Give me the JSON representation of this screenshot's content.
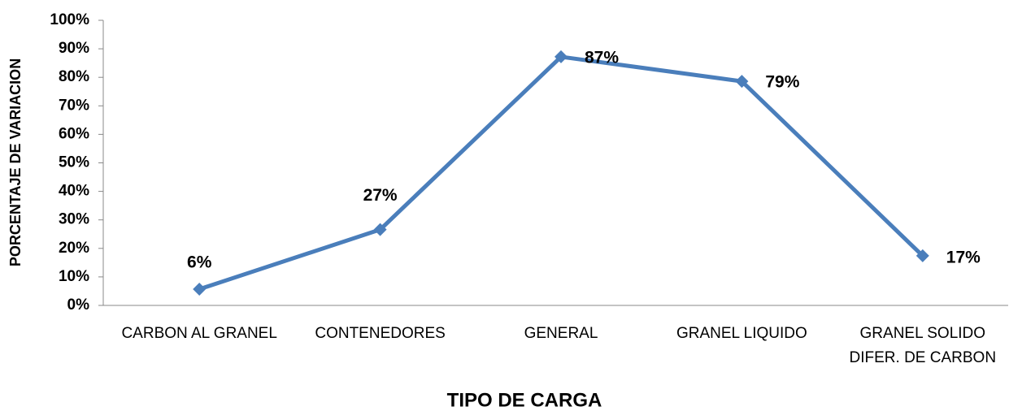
{
  "chart_data": {
    "type": "line",
    "x_label": "TIPO DE CARGA",
    "y_label": "PORCENTAJE DE VARIACION",
    "categories": [
      "CARBON AL GRANEL",
      "CONTENEDORES",
      "GENERAL",
      "GRANEL LIQUIDO",
      "GRANEL SOLIDO DIFER. DE CARBON"
    ],
    "series": [
      {
        "name": "PORCENTAJE DE VARIACION",
        "color": "#4a7ebb",
        "values": [
          5.7,
          26.6,
          87.2,
          78.6,
          17.4
        ],
        "value_labels": [
          "6%",
          "27%",
          "87%",
          "79%",
          "17%"
        ]
      }
    ],
    "ylim": [
      0,
      100
    ],
    "yticks": [
      {
        "value": 0,
        "label": "0%"
      },
      {
        "value": 10,
        "label": "10%"
      },
      {
        "value": 20,
        "label": "20%"
      },
      {
        "value": 30,
        "label": "30%"
      },
      {
        "value": 40,
        "label": "40%"
      },
      {
        "value": 50,
        "label": "50%"
      },
      {
        "value": 60,
        "label": "60%"
      },
      {
        "value": 70,
        "label": "70%"
      },
      {
        "value": 80,
        "label": "80%"
      },
      {
        "value": 90,
        "label": "90%"
      },
      {
        "value": 100,
        "label": "100%"
      }
    ],
    "grid": false,
    "legend": false
  }
}
